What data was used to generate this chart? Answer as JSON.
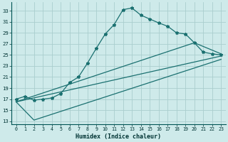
{
  "xlabel": "Humidex (Indice chaleur)",
  "bg_color": "#ceeaea",
  "grid_color": "#aacece",
  "line_color": "#1a7070",
  "xlim": [
    -0.5,
    23.5
  ],
  "ylim": [
    12.5,
    34.5
  ],
  "xticks": [
    0,
    1,
    2,
    3,
    4,
    5,
    6,
    7,
    8,
    9,
    10,
    11,
    12,
    13,
    14,
    15,
    16,
    17,
    18,
    19,
    20,
    21,
    22,
    23
  ],
  "yticks": [
    13,
    15,
    17,
    19,
    21,
    23,
    25,
    27,
    29,
    31,
    33
  ],
  "wiggly_x": [
    0,
    1,
    2,
    3,
    4,
    5,
    6,
    7,
    8,
    9,
    10,
    11,
    12,
    13,
    14,
    15,
    16,
    17,
    18,
    19,
    20,
    21,
    22,
    23
  ],
  "wiggly_y": [
    17.0,
    17.5,
    16.8,
    17.0,
    17.2,
    18.0,
    20.0,
    21.0,
    23.5,
    26.2,
    28.8,
    30.5,
    33.2,
    33.5,
    32.2,
    31.5,
    30.8,
    30.2,
    29.0,
    28.8,
    27.2,
    25.5,
    25.2,
    25.0
  ],
  "line1_x": [
    0,
    23
  ],
  "line1_y": [
    16.5,
    24.8
  ],
  "line2_x": [
    0,
    20,
    23
  ],
  "line2_y": [
    16.5,
    27.2,
    25.2
  ],
  "line3_x": [
    0,
    2,
    23
  ],
  "line3_y": [
    16.5,
    13.2,
    24.2
  ]
}
